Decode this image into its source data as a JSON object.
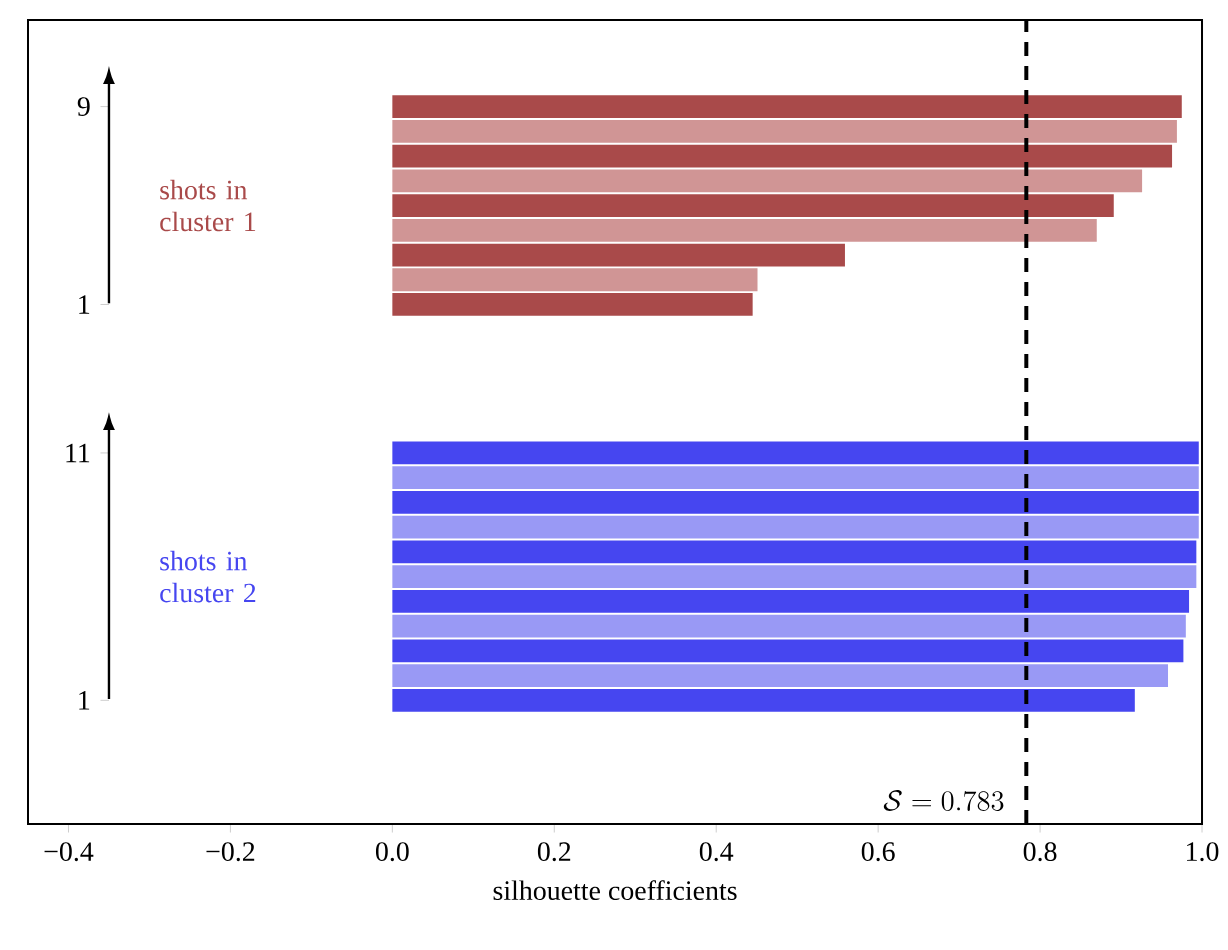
{
  "chart_data": {
    "type": "bar",
    "orientation": "horizontal",
    "xlabel": "silhouette coefficients",
    "categories": [
      "9",
      null,
      null,
      null,
      null,
      null,
      null,
      null,
      "1",
      null,
      null,
      null,
      null,
      null,
      "11",
      null,
      null,
      null,
      null,
      null,
      null,
      null,
      null,
      null,
      "1"
    ],
    "series": [
      {
        "name": "shots in cluster 1",
        "color": "#a94a4a",
        "values": [
          0.975,
          0.969,
          0.963,
          0.926,
          0.891,
          0.87,
          0.559,
          0.451,
          0.445,
          null,
          null,
          null,
          null,
          null,
          null,
          null,
          null,
          null,
          null,
          null,
          null,
          null,
          null,
          null,
          null
        ],
        "colors": [
          "#a94a4a",
          "#d09595",
          "#a94a4a",
          "#d09595",
          "#a94a4a",
          "#d09595",
          "#a94a4a",
          "#d09595",
          "#a94a4a",
          null,
          null,
          null,
          null,
          null,
          null,
          null,
          null,
          null,
          null,
          null,
          null,
          null,
          null,
          null,
          null
        ]
      },
      {
        "name": "shots in cluster 2",
        "color": "#4646f0",
        "values": [
          null,
          null,
          null,
          null,
          null,
          null,
          null,
          null,
          null,
          null,
          null,
          null,
          null,
          null,
          0.996,
          0.996,
          0.996,
          0.996,
          0.993,
          0.993,
          0.984,
          0.98,
          0.977,
          0.958,
          0.917
        ],
        "colors": [
          null,
          null,
          null,
          null,
          null,
          null,
          null,
          null,
          null,
          null,
          null,
          null,
          null,
          null,
          "#4646f0",
          "#9999f5",
          "#4646f0",
          "#9999f5",
          "#4646f0",
          "#9999f5",
          "#4646f0",
          "#9999f5",
          "#4646f0",
          "#9999f5",
          "#4646f0"
        ]
      }
    ],
    "xlim": [
      -0.45,
      1.0
    ],
    "xticks": [
      {
        "value": -0.4,
        "label": "−0.4"
      },
      {
        "value": -0.2,
        "label": "−0.2"
      },
      {
        "value": 0.0,
        "label": "0.0"
      },
      0.2,
      0.4,
      0.6,
      0.8,
      {
        "value": 1.0,
        "label": "1.0"
      }
    ],
    "ref_lines": [
      {
        "axis": "x",
        "value": 0.783,
        "label": "\\mathcal{S}=0.783",
        "color": "#000000",
        "line_style": "dashed"
      }
    ],
    "grid": false
  }
}
